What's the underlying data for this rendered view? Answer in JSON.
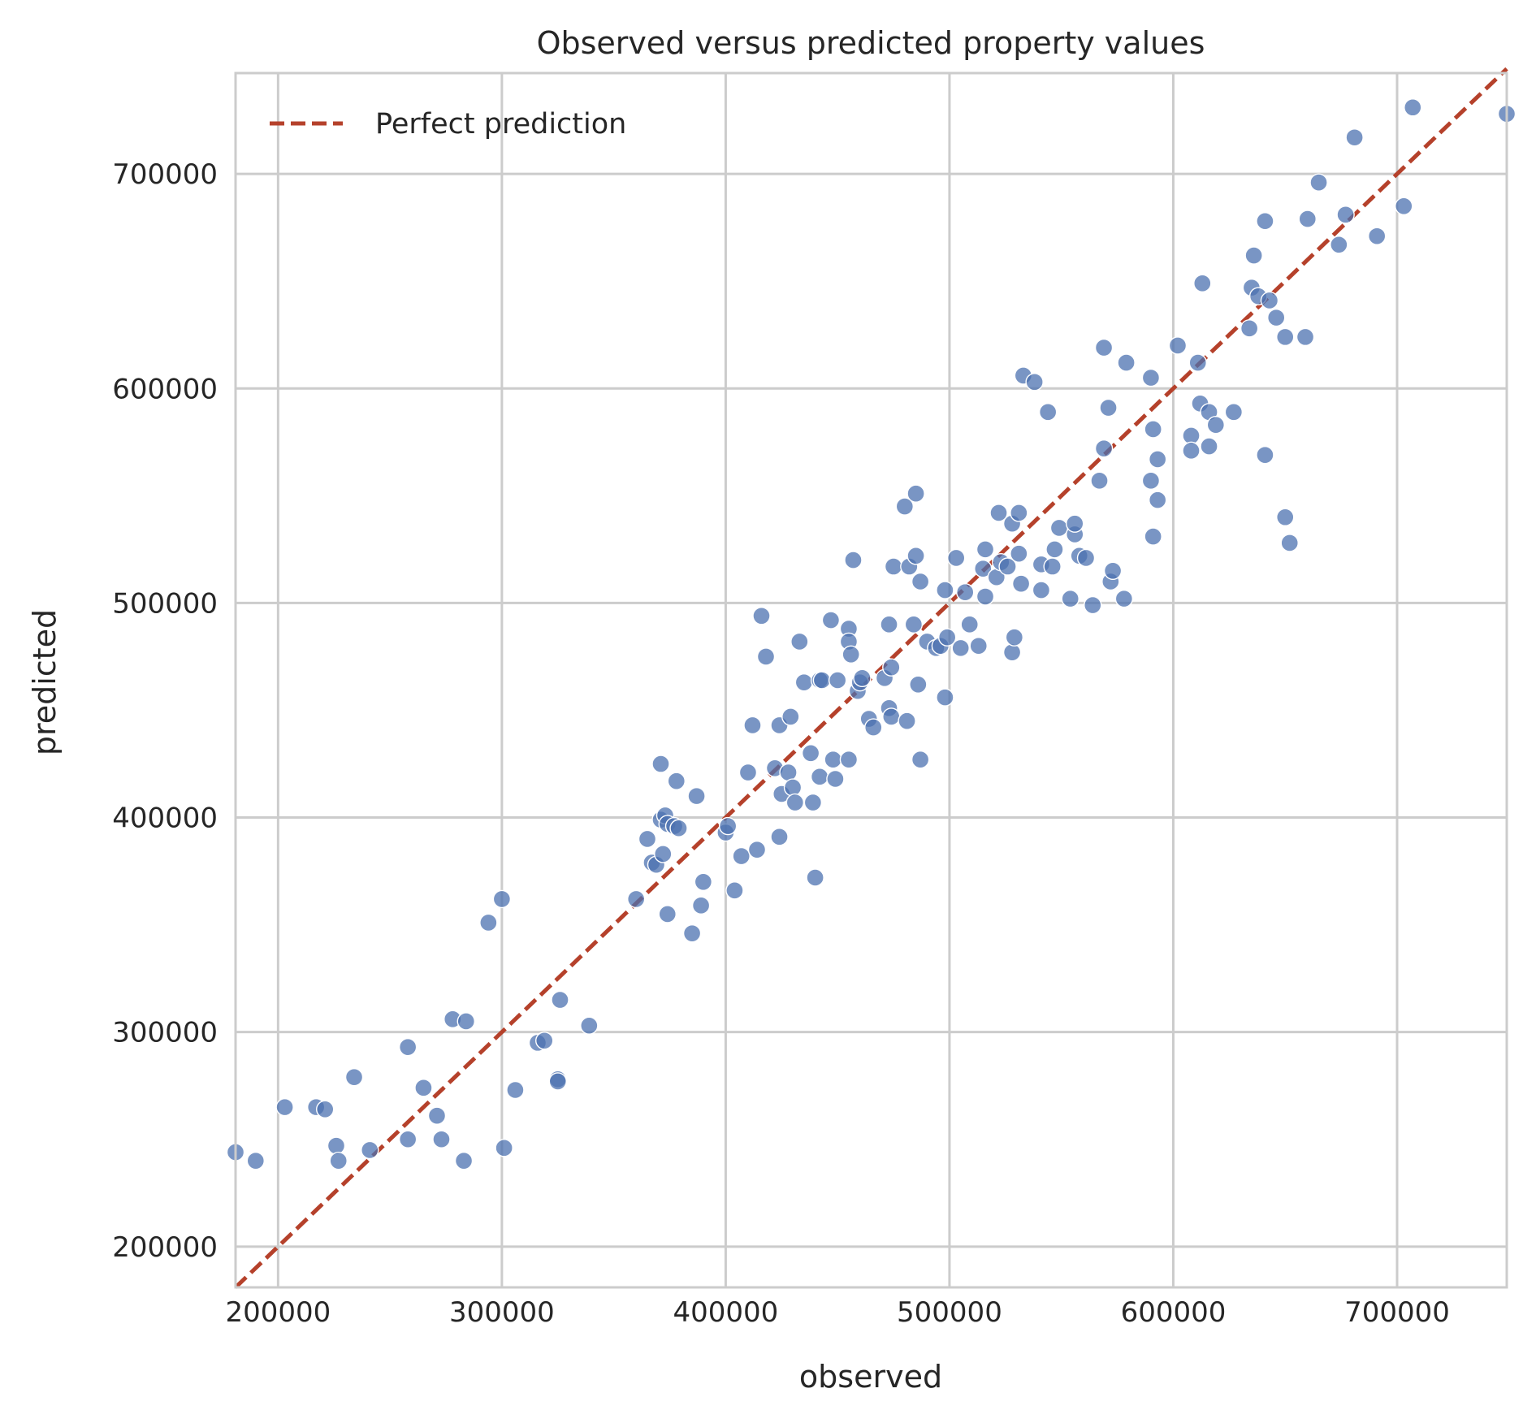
{
  "chart_data": {
    "type": "scatter",
    "title": "Observed versus predicted property values",
    "xlabel": "observed",
    "ylabel": "predicted",
    "xlim": [
      181000,
      749000
    ],
    "ylim": [
      181000,
      747000
    ],
    "xticks": [
      200000,
      300000,
      400000,
      500000,
      600000,
      700000
    ],
    "yticks": [
      200000,
      300000,
      400000,
      500000,
      600000,
      700000
    ],
    "grid": true,
    "legend": {
      "position": "top-left",
      "entries": [
        "Perfect prediction"
      ]
    },
    "colors": {
      "points": "#4c72b0",
      "reference_line": "#b5412b",
      "grid": "#cccccc",
      "axes": "#cccccc"
    },
    "reference_line": {
      "name": "Perfect prediction",
      "x": [
        181000,
        749000
      ],
      "y": [
        181000,
        749000
      ],
      "style": "dashed"
    },
    "points": [
      [
        181000,
        244000
      ],
      [
        190000,
        240000
      ],
      [
        203000,
        265000
      ],
      [
        217000,
        265000
      ],
      [
        221000,
        264000
      ],
      [
        226000,
        247000
      ],
      [
        227000,
        240000
      ],
      [
        234000,
        279000
      ],
      [
        241000,
        245000
      ],
      [
        258000,
        250000
      ],
      [
        258000,
        293000
      ],
      [
        265000,
        274000
      ],
      [
        271000,
        261000
      ],
      [
        273000,
        250000
      ],
      [
        278000,
        306000
      ],
      [
        283000,
        240000
      ],
      [
        284000,
        305000
      ],
      [
        294000,
        351000
      ],
      [
        300000,
        362000
      ],
      [
        301000,
        246000
      ],
      [
        306000,
        273000
      ],
      [
        316000,
        295000
      ],
      [
        319000,
        296000
      ],
      [
        325000,
        278000
      ],
      [
        325000,
        277000
      ],
      [
        326000,
        315000
      ],
      [
        339000,
        303000
      ],
      [
        360000,
        362000
      ],
      [
        365000,
        390000
      ],
      [
        367000,
        379000
      ],
      [
        369000,
        378000
      ],
      [
        371000,
        425000
      ],
      [
        371000,
        399000
      ],
      [
        372000,
        383000
      ],
      [
        373000,
        401000
      ],
      [
        374000,
        355000
      ],
      [
        374000,
        397000
      ],
      [
        377000,
        396000
      ],
      [
        378000,
        417000
      ],
      [
        379000,
        395000
      ],
      [
        385000,
        346000
      ],
      [
        387000,
        410000
      ],
      [
        389000,
        359000
      ],
      [
        390000,
        370000
      ],
      [
        400000,
        393000
      ],
      [
        401000,
        396000
      ],
      [
        404000,
        366000
      ],
      [
        407000,
        382000
      ],
      [
        410000,
        421000
      ],
      [
        412000,
        443000
      ],
      [
        414000,
        385000
      ],
      [
        416000,
        494000
      ],
      [
        418000,
        475000
      ],
      [
        422000,
        423000
      ],
      [
        424000,
        391000
      ],
      [
        424000,
        443000
      ],
      [
        425000,
        411000
      ],
      [
        428000,
        421000
      ],
      [
        429000,
        447000
      ],
      [
        430000,
        414000
      ],
      [
        431000,
        407000
      ],
      [
        433000,
        482000
      ],
      [
        435000,
        463000
      ],
      [
        438000,
        430000
      ],
      [
        439000,
        407000
      ],
      [
        440000,
        372000
      ],
      [
        442000,
        464000
      ],
      [
        442000,
        419000
      ],
      [
        443000,
        464000
      ],
      [
        447000,
        492000
      ],
      [
        448000,
        427000
      ],
      [
        449000,
        418000
      ],
      [
        450000,
        464000
      ],
      [
        455000,
        427000
      ],
      [
        455000,
        488000
      ],
      [
        455000,
        482000
      ],
      [
        456000,
        476000
      ],
      [
        457000,
        520000
      ],
      [
        459000,
        459000
      ],
      [
        460000,
        463000
      ],
      [
        461000,
        465000
      ],
      [
        464000,
        446000
      ],
      [
        466000,
        442000
      ],
      [
        471000,
        465000
      ],
      [
        473000,
        490000
      ],
      [
        473000,
        451000
      ],
      [
        474000,
        447000
      ],
      [
        474000,
        470000
      ],
      [
        475000,
        517000
      ],
      [
        480000,
        545000
      ],
      [
        481000,
        445000
      ],
      [
        482000,
        517000
      ],
      [
        484000,
        490000
      ],
      [
        485000,
        522000
      ],
      [
        485000,
        551000
      ],
      [
        486000,
        462000
      ],
      [
        487000,
        427000
      ],
      [
        487000,
        510000
      ],
      [
        490000,
        482000
      ],
      [
        494000,
        479000
      ],
      [
        496000,
        480000
      ],
      [
        498000,
        456000
      ],
      [
        498000,
        506000
      ],
      [
        499000,
        484000
      ],
      [
        503000,
        521000
      ],
      [
        505000,
        479000
      ],
      [
        507000,
        505000
      ],
      [
        509000,
        490000
      ],
      [
        513000,
        480000
      ],
      [
        515000,
        516000
      ],
      [
        516000,
        525000
      ],
      [
        516000,
        503000
      ],
      [
        521000,
        512000
      ],
      [
        522000,
        542000
      ],
      [
        523000,
        519000
      ],
      [
        526000,
        517000
      ],
      [
        528000,
        537000
      ],
      [
        528000,
        477000
      ],
      [
        529000,
        484000
      ],
      [
        531000,
        542000
      ],
      [
        531000,
        523000
      ],
      [
        532000,
        509000
      ],
      [
        533000,
        606000
      ],
      [
        538000,
        603000
      ],
      [
        541000,
        518000
      ],
      [
        541000,
        506000
      ],
      [
        544000,
        589000
      ],
      [
        546000,
        517000
      ],
      [
        547000,
        525000
      ],
      [
        549000,
        535000
      ],
      [
        554000,
        502000
      ],
      [
        556000,
        532000
      ],
      [
        556000,
        537000
      ],
      [
        558000,
        522000
      ],
      [
        561000,
        521000
      ],
      [
        564000,
        499000
      ],
      [
        567000,
        557000
      ],
      [
        569000,
        619000
      ],
      [
        569000,
        572000
      ],
      [
        571000,
        591000
      ],
      [
        572000,
        510000
      ],
      [
        573000,
        515000
      ],
      [
        578000,
        502000
      ],
      [
        579000,
        612000
      ],
      [
        590000,
        605000
      ],
      [
        590000,
        557000
      ],
      [
        591000,
        581000
      ],
      [
        591000,
        531000
      ],
      [
        593000,
        567000
      ],
      [
        593000,
        548000
      ],
      [
        602000,
        620000
      ],
      [
        608000,
        578000
      ],
      [
        608000,
        571000
      ],
      [
        611000,
        612000
      ],
      [
        612000,
        593000
      ],
      [
        613000,
        649000
      ],
      [
        616000,
        589000
      ],
      [
        616000,
        573000
      ],
      [
        619000,
        583000
      ],
      [
        627000,
        589000
      ],
      [
        634000,
        628000
      ],
      [
        635000,
        647000
      ],
      [
        636000,
        662000
      ],
      [
        638000,
        643000
      ],
      [
        641000,
        569000
      ],
      [
        641000,
        678000
      ],
      [
        643000,
        641000
      ],
      [
        646000,
        633000
      ],
      [
        650000,
        624000
      ],
      [
        650000,
        540000
      ],
      [
        652000,
        528000
      ],
      [
        659000,
        624000
      ],
      [
        660000,
        679000
      ],
      [
        665000,
        696000
      ],
      [
        674000,
        667000
      ],
      [
        677000,
        681000
      ],
      [
        681000,
        717000
      ],
      [
        691000,
        671000
      ],
      [
        703000,
        685000
      ],
      [
        707000,
        731000
      ],
      [
        749000,
        728000
      ]
    ]
  }
}
